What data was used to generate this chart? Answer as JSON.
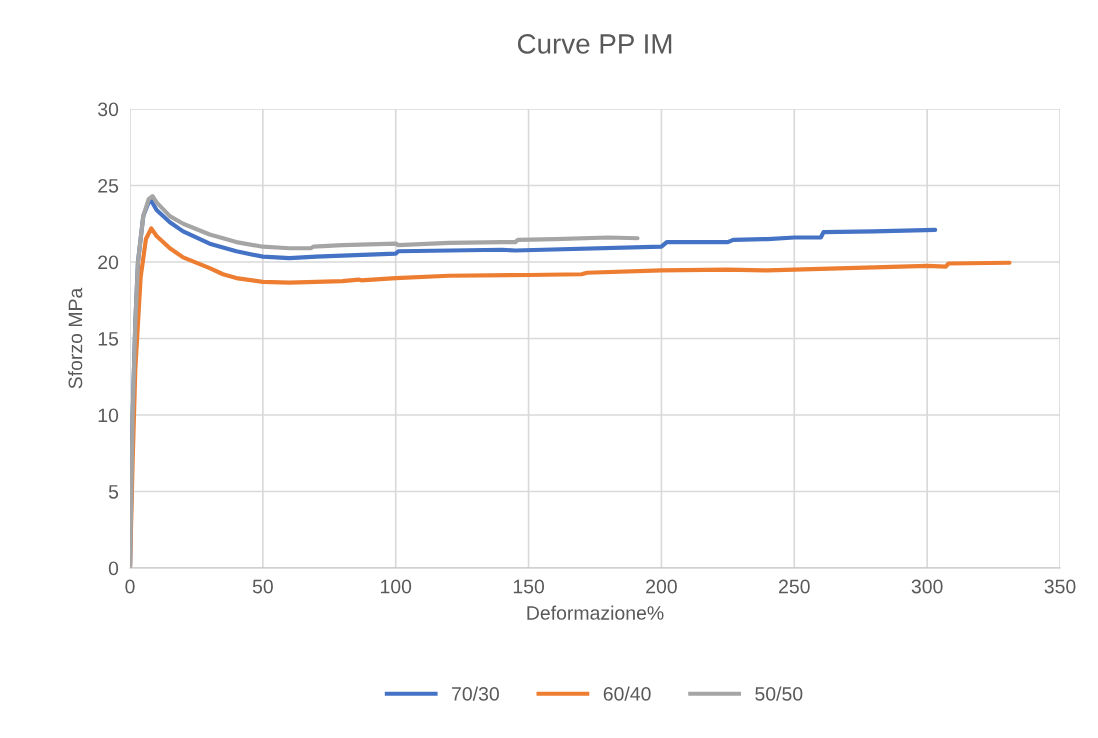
{
  "chart_data": {
    "type": "line",
    "title": "Curve PP IM",
    "xlabel": "Deformazione%",
    "ylabel": "Sforzo MPa",
    "xlim": [
      0,
      350
    ],
    "xticks": [
      0,
      50,
      100,
      150,
      200,
      250,
      300,
      350
    ],
    "ylim": [
      0,
      30
    ],
    "yticks": [
      0,
      5,
      10,
      15,
      20,
      25,
      30
    ],
    "grid": true,
    "legend": "bottom",
    "marker": "none",
    "line_style": "solid",
    "series": [
      {
        "name": "70/30",
        "color": "#4472c4",
        "x": [
          0,
          1,
          2,
          3,
          5,
          7,
          8,
          10,
          15,
          20,
          30,
          40,
          50,
          60,
          70,
          100,
          101,
          140,
          145,
          200,
          202,
          225,
          227,
          240,
          250,
          260,
          261,
          280,
          303
        ],
        "values": [
          0,
          10,
          16,
          20,
          23,
          23.9,
          24.0,
          23.4,
          22.6,
          22.0,
          21.2,
          20.7,
          20.35,
          20.25,
          20.35,
          20.55,
          20.7,
          20.8,
          20.75,
          21.0,
          21.3,
          21.3,
          21.45,
          21.5,
          21.6,
          21.6,
          21.95,
          22.0,
          22.1
        ]
      },
      {
        "name": "60/40",
        "color": "#ed7d31",
        "x": [
          0,
          1,
          2,
          4,
          6,
          8,
          10,
          15,
          20,
          30,
          35,
          40,
          50,
          60,
          80,
          86,
          87,
          100,
          120,
          150,
          170,
          172,
          200,
          225,
          240,
          260,
          280,
          300,
          307,
          308,
          331
        ],
        "values": [
          0,
          7,
          13,
          19,
          21.5,
          22.2,
          21.7,
          20.9,
          20.3,
          19.6,
          19.2,
          18.95,
          18.7,
          18.65,
          18.75,
          18.85,
          18.8,
          18.95,
          19.1,
          19.15,
          19.2,
          19.3,
          19.45,
          19.5,
          19.45,
          19.55,
          19.65,
          19.75,
          19.7,
          19.9,
          19.95
        ]
      },
      {
        "name": "50/50",
        "color": "#a5a5a5",
        "x": [
          0,
          0.5,
          1,
          2,
          3,
          5,
          7,
          8.5,
          10,
          15,
          20,
          30,
          40,
          50,
          60,
          68,
          69,
          80,
          100,
          101,
          120,
          140,
          145,
          146,
          160,
          180,
          191
        ],
        "values": [
          0,
          5,
          10,
          16,
          20,
          23,
          24.1,
          24.3,
          23.9,
          23,
          22.5,
          21.8,
          21.3,
          21.0,
          20.9,
          20.9,
          21.0,
          21.1,
          21.2,
          21.1,
          21.25,
          21.3,
          21.3,
          21.45,
          21.5,
          21.6,
          21.55
        ]
      }
    ]
  }
}
